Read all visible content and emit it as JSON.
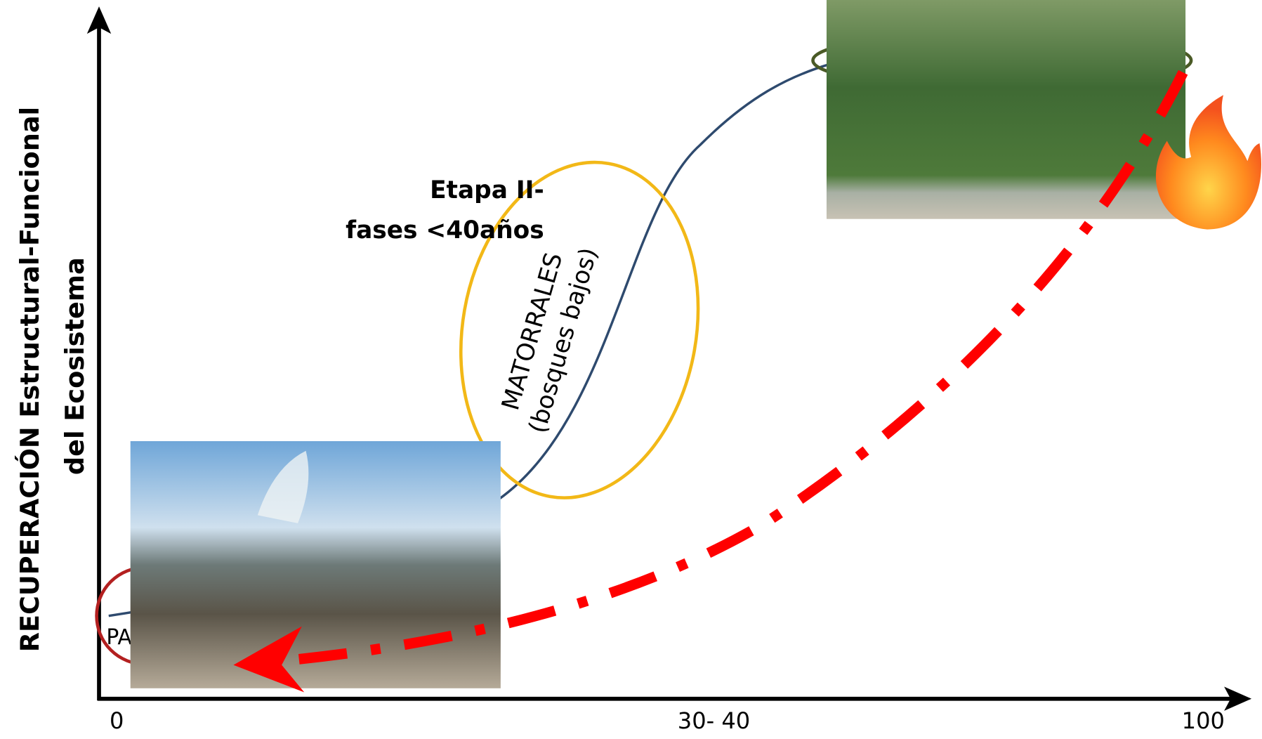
{
  "axis": {
    "y_label_lines": [
      "RECUPERACIÓN Estructural-Funcional",
      "del Ecosistema"
    ],
    "x_ticks": [
      "0",
      "30- 40",
      "100"
    ]
  },
  "annotations": {
    "stage": [
      "Etapa II-",
      "fases <40años"
    ],
    "shrubland": [
      "MATORRALES",
      "(bosques bajos)"
    ],
    "partial": "PA"
  }
}
